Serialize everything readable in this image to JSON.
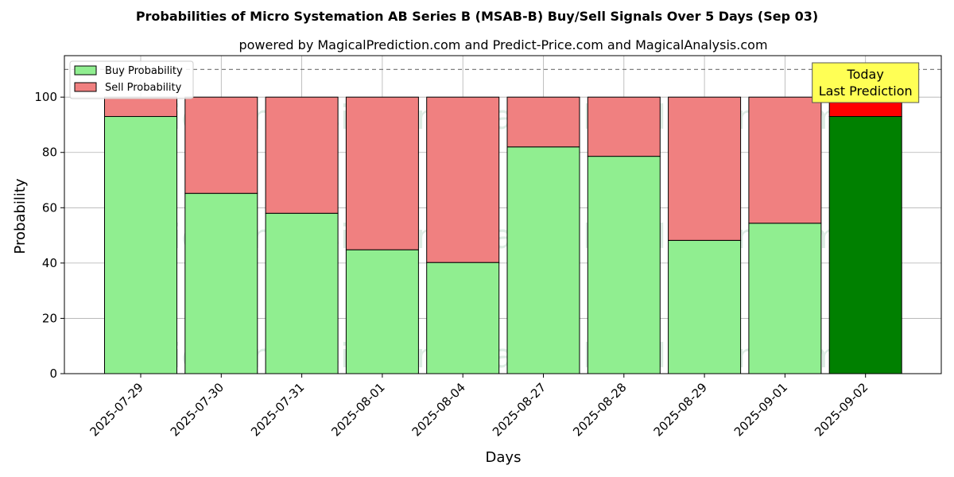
{
  "chart_data": {
    "type": "bar",
    "stacked": true,
    "title": "Probabilities of Micro Systemation AB Series B (MSAB-B) Buy/Sell Signals Over 5 Days (Sep 03)",
    "subtitle": "powered by MagicalPrediction.com and Predict-Price.com and MagicalAnalysis.com",
    "xlabel": "Days",
    "ylabel": "Probability",
    "ylim": [
      0,
      115
    ],
    "yticks": [
      0,
      20,
      40,
      60,
      80,
      100
    ],
    "categories": [
      "2025-07-29",
      "2025-07-30",
      "2025-07-31",
      "2025-08-01",
      "2025-08-04",
      "2025-08-27",
      "2025-08-28",
      "2025-08-29",
      "2025-09-01",
      "2025-09-02"
    ],
    "series": [
      {
        "name": "Buy Probability",
        "color": "#90ee90",
        "highlight_color": "#008000",
        "values": [
          93,
          65.2,
          58,
          44.8,
          40.2,
          82,
          78.6,
          48.2,
          54.4,
          93
        ]
      },
      {
        "name": "Sell Probability",
        "color": "#f08080",
        "highlight_color": "#ff0000",
        "values": [
          7,
          34.8,
          42,
          55.2,
          59.8,
          18,
          21.4,
          51.8,
          45.6,
          7
        ]
      }
    ],
    "highlight_index": 9,
    "reference_line": {
      "y": 110,
      "style": "dashed",
      "color": "#808080"
    },
    "annotation": {
      "lines": [
        "Today",
        "Last Prediction"
      ],
      "category_index": 9,
      "background": "#ffff55"
    },
    "legend": {
      "position": "top-left"
    },
    "grid": true,
    "watermarks": [
      "MagicalAnalysis.com",
      "MagicalPrediction.com"
    ]
  }
}
